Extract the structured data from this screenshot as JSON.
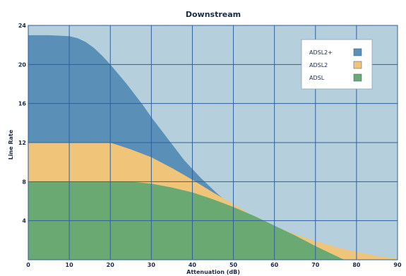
{
  "chart_data": {
    "type": "area",
    "title": "Downstream",
    "xlabel": "Attenuation (dB)",
    "ylabel": "Line Rate",
    "xlim": [
      0,
      90
    ],
    "ylim": [
      0,
      24
    ],
    "xticks": [
      0,
      10,
      20,
      30,
      40,
      50,
      60,
      70,
      80,
      90
    ],
    "yticks": [
      4,
      8,
      12,
      16,
      20,
      24
    ],
    "grid": true,
    "legend_position": "top-right",
    "colors": {
      "plot_background": "#b5d0dc",
      "grid": "#2f5f9e",
      "ADSL2+": "#5a8fb8",
      "ADSL2": "#f0c57a",
      "ADSL": "#6aaa72"
    },
    "series": [
      {
        "name": "ADSL2+",
        "x": [
          0,
          5,
          10,
          12,
          14,
          16,
          18,
          20,
          22,
          24,
          26,
          28,
          30,
          32,
          34,
          36,
          38,
          40,
          42,
          44,
          46,
          48,
          50,
          52
        ],
        "y": [
          23,
          23,
          22.9,
          22.7,
          22.3,
          21.7,
          20.9,
          20,
          19,
          18,
          16.9,
          15.8,
          14.6,
          13.5,
          12.4,
          11.3,
          10.2,
          9.3,
          8.4,
          7.6,
          6.8,
          6.1,
          5.5,
          5.1
        ]
      },
      {
        "name": "ADSL2",
        "x": [
          0,
          10,
          20,
          25,
          30,
          35,
          40,
          45,
          50,
          55,
          60,
          65,
          70,
          75,
          80,
          85,
          90
        ],
        "y": [
          12,
          12,
          12,
          11.3,
          10.5,
          9.4,
          8.2,
          6.9,
          5.7,
          4.4,
          3.4,
          2.6,
          1.9,
          1.3,
          0.8,
          0.4,
          0.1
        ]
      },
      {
        "name": "ADSL",
        "x": [
          0,
          10,
          20,
          25,
          30,
          35,
          40,
          45,
          50,
          55,
          60,
          65,
          70,
          75,
          77
        ],
        "y": [
          8,
          8,
          8,
          8,
          7.8,
          7.4,
          6.9,
          6.2,
          5.4,
          4.5,
          3.5,
          2.5,
          1.4,
          0.4,
          0
        ]
      }
    ]
  }
}
